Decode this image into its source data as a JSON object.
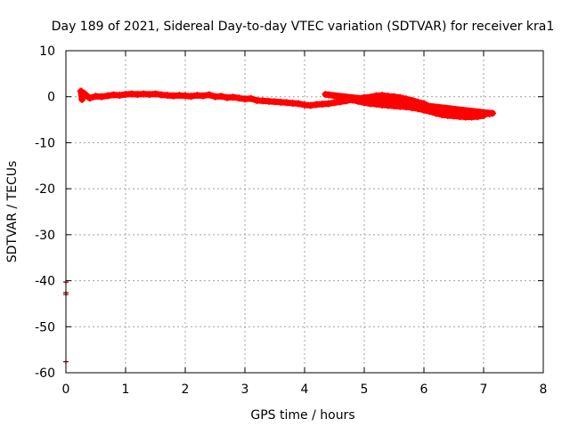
{
  "chart_data": {
    "type": "scatter",
    "title": "Day 189 of 2021, Sidereal Day-to-day VTEC variation (SDTVAR) for receiver kra1",
    "xlabel": "GPS time / hours",
    "ylabel": "SDTVAR / TECUs",
    "xlim": [
      0,
      8
    ],
    "ylim": [
      -60,
      10
    ],
    "x_ticks": [
      0,
      1,
      2,
      3,
      4,
      5,
      6,
      7,
      8
    ],
    "y_ticks": [
      10,
      0,
      -10,
      -20,
      -30,
      -40,
      -50,
      -60
    ],
    "grid": true,
    "legend": "none",
    "color": "#ff0000",
    "outlier_color": "#990000",
    "series": [
      {
        "points": [
          [
            0.25,
            1.2
          ],
          [
            0.27,
            -0.6
          ],
          [
            0.3,
            0.8
          ],
          [
            0.35,
            0.2
          ],
          [
            0.4,
            -0.3
          ],
          [
            0.5,
            0.1
          ],
          [
            0.6,
            0.0
          ],
          [
            0.7,
            0.2
          ],
          [
            0.8,
            0.4
          ],
          [
            0.9,
            0.3
          ],
          [
            1.0,
            0.5
          ],
          [
            1.1,
            0.6
          ],
          [
            1.2,
            0.5
          ],
          [
            1.3,
            0.6
          ],
          [
            1.4,
            0.5
          ],
          [
            1.5,
            0.6
          ],
          [
            1.6,
            0.4
          ],
          [
            1.7,
            0.3
          ],
          [
            1.8,
            0.2
          ],
          [
            1.9,
            0.3
          ],
          [
            2.0,
            0.2
          ],
          [
            2.1,
            0.1
          ],
          [
            2.2,
            0.3
          ],
          [
            2.3,
            0.2
          ],
          [
            2.4,
            0.4
          ],
          [
            2.5,
            0.0
          ],
          [
            2.6,
            0.1
          ],
          [
            2.7,
            -0.2
          ],
          [
            2.8,
            -0.1
          ],
          [
            2.9,
            -0.3
          ],
          [
            3.0,
            -0.5
          ],
          [
            3.1,
            -0.4
          ],
          [
            3.2,
            -0.8
          ],
          [
            3.3,
            -0.9
          ],
          [
            3.4,
            -1.0
          ],
          [
            3.5,
            -1.1
          ],
          [
            3.6,
            -1.2
          ],
          [
            3.7,
            -1.3
          ],
          [
            3.8,
            -1.4
          ],
          [
            3.9,
            -1.5
          ],
          [
            4.0,
            -1.8
          ],
          [
            4.1,
            -1.9
          ],
          [
            4.2,
            -1.7
          ],
          [
            4.3,
            -1.6
          ],
          [
            4.4,
            -1.5
          ],
          [
            4.5,
            -1.3
          ],
          [
            4.6,
            -1.1
          ],
          [
            4.7,
            -0.9
          ],
          [
            4.8,
            -0.6
          ],
          [
            4.9,
            -0.4
          ],
          [
            5.0,
            -0.2
          ],
          [
            5.1,
            -0.1
          ],
          [
            5.2,
            0.2
          ],
          [
            5.3,
            0.3
          ],
          [
            5.4,
            0.1
          ],
          [
            5.5,
            0.0
          ],
          [
            5.6,
            -0.2
          ],
          [
            5.7,
            -0.5
          ],
          [
            5.8,
            -0.8
          ],
          [
            5.9,
            -1.2
          ],
          [
            6.0,
            -1.5
          ],
          [
            6.1,
            -2.2
          ],
          [
            6.2,
            -2.5
          ],
          [
            6.3,
            -2.8
          ],
          [
            6.4,
            -3.0
          ],
          [
            6.5,
            -3.2
          ],
          [
            6.6,
            -3.4
          ],
          [
            6.7,
            -3.5
          ],
          [
            6.8,
            -3.6
          ],
          [
            6.9,
            -3.7
          ],
          [
            7.0,
            -3.8
          ],
          [
            7.1,
            -3.7
          ],
          [
            7.15,
            -3.6
          ],
          [
            4.35,
            0.5
          ],
          [
            4.4,
            0.4
          ],
          [
            4.5,
            0.2
          ],
          [
            4.6,
            -0.1
          ],
          [
            4.7,
            -0.4
          ],
          [
            4.8,
            -0.7
          ],
          [
            4.9,
            -1.0
          ],
          [
            5.0,
            -1.3
          ],
          [
            5.1,
            -1.5
          ],
          [
            5.2,
            -1.6
          ],
          [
            5.3,
            -1.8
          ],
          [
            5.4,
            -1.9
          ],
          [
            5.5,
            -2.0
          ],
          [
            5.6,
            -2.1
          ],
          [
            5.7,
            -2.2
          ],
          [
            5.8,
            -2.4
          ],
          [
            5.9,
            -2.6
          ],
          [
            6.0,
            -2.9
          ],
          [
            6.1,
            -3.2
          ],
          [
            6.2,
            -3.6
          ],
          [
            6.3,
            -3.9
          ],
          [
            6.4,
            -4.1
          ],
          [
            6.5,
            -4.2
          ],
          [
            6.6,
            -4.3
          ],
          [
            6.7,
            -4.4
          ],
          [
            6.8,
            -4.4
          ],
          [
            6.9,
            -4.3
          ],
          [
            7.0,
            -4.1
          ]
        ]
      },
      {
        "points": [
          [
            0.0,
            -40.3
          ],
          [
            0.0,
            -42.6
          ],
          [
            0.0,
            -43.0
          ],
          [
            0.0,
            -57.6
          ]
        ]
      }
    ]
  }
}
